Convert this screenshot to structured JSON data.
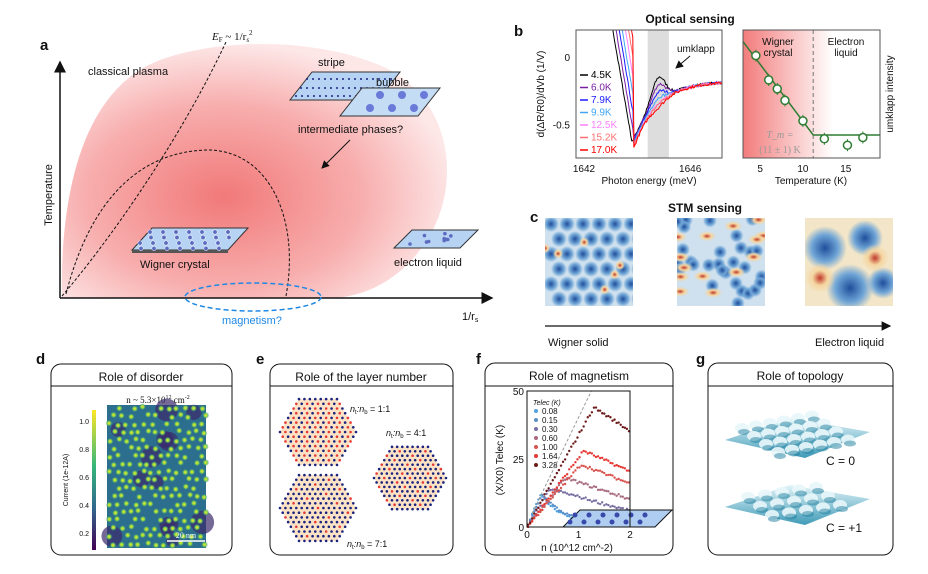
{
  "panel_labels": {
    "a": "a",
    "b": "b",
    "c": "c",
    "d": "d",
    "e": "e",
    "f": "f",
    "g": "g"
  },
  "panel_a": {
    "y_axis_label": "Temperature",
    "x_axis_label_main": "1/r",
    "x_axis_label_sub": "s",
    "classical_plasma": "classical plasma",
    "fermi_label_main": "E",
    "fermi_label_sub": "F",
    "fermi_label_rest": " ~ 1/r",
    "fermi_label_sub2": "s",
    "fermi_label_sup": "2",
    "stripe": "stripe",
    "bubble": "bubble",
    "intermediate": "intermediate phases?",
    "wigner_crystal": "Wigner crystal",
    "electron_liquid": "electron liquid",
    "magnetism": "magnetism?",
    "colors": {
      "plasma": "#f08080",
      "magnetism": "#1e88e5",
      "plate": "#a8c8ee"
    }
  },
  "panel_b": {
    "title": "Optical sensing",
    "umklapp": "umklapp",
    "wigner_region": [
      "Wigner",
      "crystal"
    ],
    "liquid_region": [
      "Electron",
      "liquid"
    ],
    "tm_line1": "T_m =",
    "tm_line2": "(11 ± 1) K"
  },
  "panel_c": {
    "title": "STM sensing",
    "left_label": "Wigner solid",
    "right_label": "Electron liquid"
  },
  "panel_d": {
    "title": "Role of disorder",
    "density_label": "n ~ 5.3×10",
    "density_sup": "12",
    "density_unit": " cm",
    "density_unit_sup": "-2",
    "colorbar_label": "Current (1e-12A)",
    "colorbar_ticks": [
      "1.0",
      "0.8",
      "0.6",
      "0.4",
      "0.2"
    ],
    "scalebar": "20 nm"
  },
  "panel_e": {
    "title": "Role of the layer number",
    "ratios": [
      {
        "t": "n",
        "ts": "t",
        "sep": ":n",
        "bs": "b",
        "val": " = 1:1"
      },
      {
        "t": "n",
        "ts": "t",
        "sep": ":n",
        "bs": "b",
        "val": " = 4:1"
      },
      {
        "t": "n",
        "ts": "t",
        "sep": ":n",
        "bs": "b",
        "val": " = 7:1"
      }
    ],
    "colors": {
      "blue_site": "#1a237e",
      "red_site": "#e53935",
      "tile_a": "#fde3c6",
      "tile_b": "#cfe9d6"
    }
  },
  "panel_f": {
    "title": "Role of magnetism"
  },
  "panel_g": {
    "title": "Role of topology",
    "c0": "C = 0",
    "c1": "C = +1"
  },
  "chart_data": [
    {
      "id": "b-left",
      "type": "line",
      "xlabel": "Photon energy (meV)",
      "ylabel": "d(ΔR/R0)/dVb (1/V)",
      "xticks": [
        "1642",
        "1646"
      ],
      "yticks": [
        "0",
        "-0.5"
      ],
      "xlim": [
        1641.7,
        1647.2
      ],
      "ylim": [
        -0.75,
        0.2
      ],
      "shaded_band": [
        1644.4,
        1645.2
      ],
      "annotation": "umklapp",
      "series": [
        {
          "name": "4.5K",
          "color": "#000000",
          "umklapp": 0.18
        },
        {
          "name": "6.0K",
          "color": "#7b1fa2",
          "umklapp": 0.13
        },
        {
          "name": "7.9K",
          "color": "#1a1aff",
          "umklapp": 0.08
        },
        {
          "name": "9.9K",
          "color": "#42a5f5",
          "umklapp": 0.04
        },
        {
          "name": "12.5K",
          "color": "#ff80ff",
          "umklapp": 0.0
        },
        {
          "name": "15.2K",
          "color": "#ff6f6f",
          "umklapp": 0.0
        },
        {
          "name": "17.0K",
          "color": "#ff0000",
          "umklapp": -0.02
        }
      ]
    },
    {
      "id": "b-right",
      "type": "scatter",
      "xlabel": "Temperature (K)",
      "ylabel": "umklapp intensity",
      "xticks": [
        "5",
        "10",
        "15"
      ],
      "xlim": [
        3,
        19
      ],
      "ylim": [
        0,
        1
      ],
      "transition_T": 11.2,
      "x": [
        4.5,
        6.0,
        7.0,
        7.9,
        10.0,
        12.5,
        15.2,
        17.0
      ],
      "y": [
        0.8,
        0.61,
        0.54,
        0.45,
        0.29,
        0.15,
        0.1,
        0.16
      ],
      "fit": {
        "x": [
          3,
          11.2,
          19
        ],
        "y": [
          0.91,
          0.18,
          0.18
        ]
      },
      "color": "#2e7d32"
    },
    {
      "id": "f",
      "type": "scatter",
      "xlabel": "n (10^12 cm^-2)",
      "ylabel": "(X/X0) Telec (K)",
      "legend_title": "Telec (K)",
      "xticks": [
        "0",
        "1",
        "2"
      ],
      "yticks": [
        "0",
        "25",
        "50"
      ],
      "xlim": [
        0,
        2
      ],
      "ylim": [
        0,
        50
      ],
      "legend": "top-left",
      "series": [
        {
          "name": "0.08",
          "color": "#4ea3e0",
          "peak_n": 0.25,
          "peak_y": 12
        },
        {
          "name": "0.15",
          "color": "#5b8fc9",
          "peak_n": 0.3,
          "peak_y": 12
        },
        {
          "name": "0.30",
          "color": "#7a6fa3",
          "peak_n": 0.45,
          "peak_y": 14
        },
        {
          "name": "0.60",
          "color": "#a86a7d",
          "peak_n": 0.75,
          "peak_y": 18
        },
        {
          "name": "1.00",
          "color": "#d9534f",
          "peak_n": 1.05,
          "peak_y": 23
        },
        {
          "name": "1.64",
          "color": "#e53935",
          "peak_n": 1.1,
          "peak_y": 28
        },
        {
          "name": "3.28",
          "color": "#6d1b1b",
          "peak_n": 1.3,
          "peak_y": 44
        }
      ]
    }
  ]
}
